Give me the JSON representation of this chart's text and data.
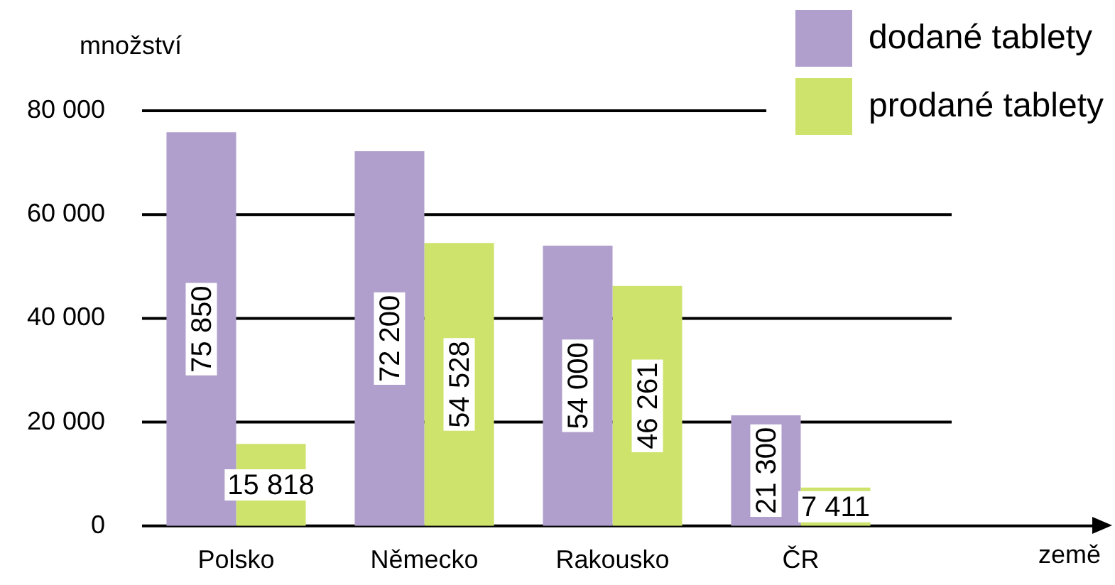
{
  "chart_data": {
    "type": "bar",
    "xlabel": "země",
    "ylabel": "množství",
    "categories": [
      "Polsko",
      "Německo",
      "Rakousko",
      "ČR"
    ],
    "series": [
      {
        "name": "dodané tablety",
        "color": "#b09fcc",
        "values": [
          75850,
          72200,
          54000,
          21300
        ],
        "value_labels": [
          "75 850",
          "72 200",
          "54 000",
          "21 300"
        ]
      },
      {
        "name": "prodané tablety",
        "color": "#cde36c",
        "values": [
          15818,
          54528,
          46261,
          7411
        ],
        "value_labels": [
          "15 818",
          "54 528",
          "46 261",
          "7 411"
        ]
      }
    ],
    "ylim": [
      0,
      80000
    ],
    "yticks": [
      {
        "value": 0,
        "label": "0"
      },
      {
        "value": 20000,
        "label": "20 000"
      },
      {
        "value": 40000,
        "label": "40 000"
      },
      {
        "value": 60000,
        "label": "60 000"
      },
      {
        "value": 80000,
        "label": "80 000"
      }
    ],
    "grid": "y",
    "legend": "top right"
  }
}
